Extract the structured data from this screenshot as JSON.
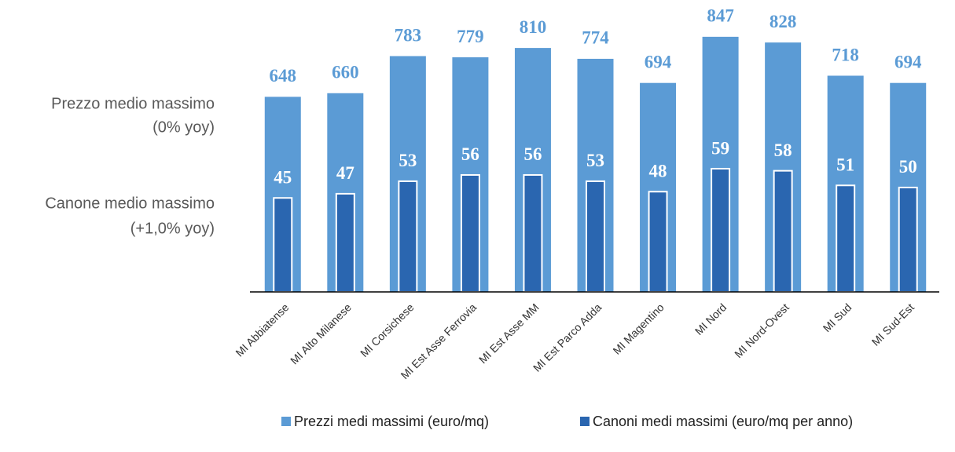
{
  "chart_data": {
    "type": "bar",
    "annotations": [
      "Prezzo medio massimo",
      "(0% yoy)",
      "Canone medio massimo",
      "(+1,0% yoy)"
    ],
    "categories": [
      "MI Abbiatense",
      "MI Alto Milanese",
      "MI Corsichese",
      "MI Est Asse Ferrovia",
      "MI Est Asse MM",
      "MI Est Parco Adda",
      "MI Magentino",
      "MI Nord",
      "MI Nord-Ovest",
      "MI Sud",
      "MI Sud-Est"
    ],
    "series": [
      {
        "name": "Prezzi medi massimi (euro/mq)",
        "color": "#5b9bd5",
        "values": [
          648,
          660,
          783,
          779,
          810,
          774,
          694,
          847,
          828,
          718,
          694
        ]
      },
      {
        "name": "Canoni medi massimi (euro/mq per anno)",
        "color": "#2a66b0",
        "axis": "y2",
        "values": [
          45,
          47,
          53,
          56,
          56,
          53,
          48,
          59,
          58,
          51,
          50
        ]
      }
    ],
    "ylim": [
      0,
      900
    ],
    "y2lim": [
      0,
      130
    ],
    "legend": "bottom"
  }
}
